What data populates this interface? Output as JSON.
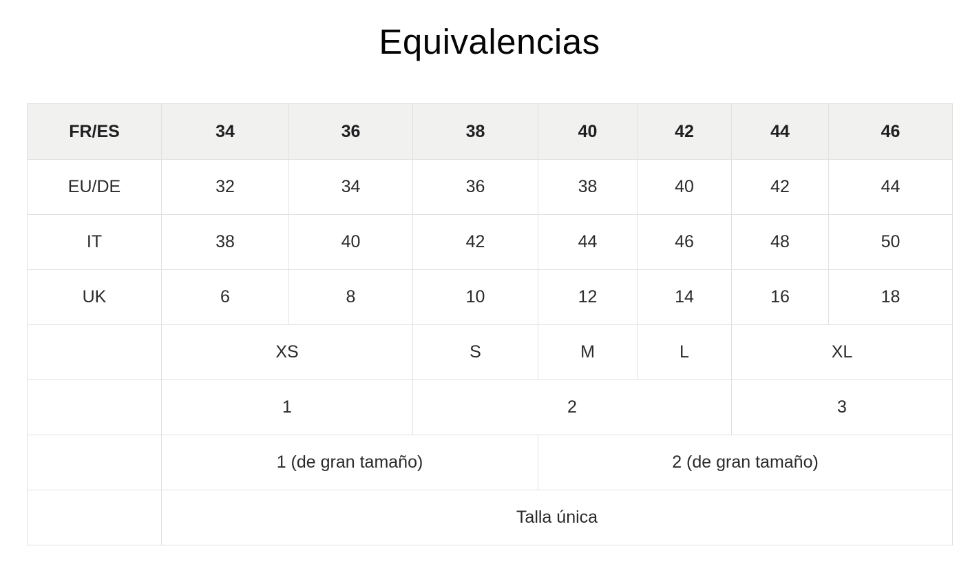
{
  "title": "Equivalencias",
  "colors": {
    "header_bg": "#f1f1f0",
    "border": "#e1e1e1",
    "text": "#2a2a2c",
    "title_text": "#050505"
  },
  "table": {
    "header": [
      "FR/ES",
      "34",
      "36",
      "38",
      "40",
      "42",
      "44",
      "46"
    ],
    "row_eu_de": [
      "EU/DE",
      "32",
      "34",
      "36",
      "38",
      "40",
      "42",
      "44"
    ],
    "row_it": [
      "IT",
      "38",
      "40",
      "42",
      "44",
      "46",
      "48",
      "50"
    ],
    "row_uk": [
      "UK",
      "6",
      "8",
      "10",
      "12",
      "14",
      "16",
      "18"
    ],
    "row_letter_sizes": {
      "label": "",
      "xs": "XS",
      "s": "S",
      "m": "M",
      "l": "L",
      "xl": "XL"
    },
    "row_numeric_sizes": {
      "label": "",
      "n1": "1",
      "n2": "2",
      "n3": "3"
    },
    "row_plus_sizes": {
      "label": "",
      "p1": "1 (de gran tamaño)",
      "p2": "2 (de gran tamaño)"
    },
    "row_one_size": {
      "label": "",
      "value": "Talla única"
    }
  }
}
